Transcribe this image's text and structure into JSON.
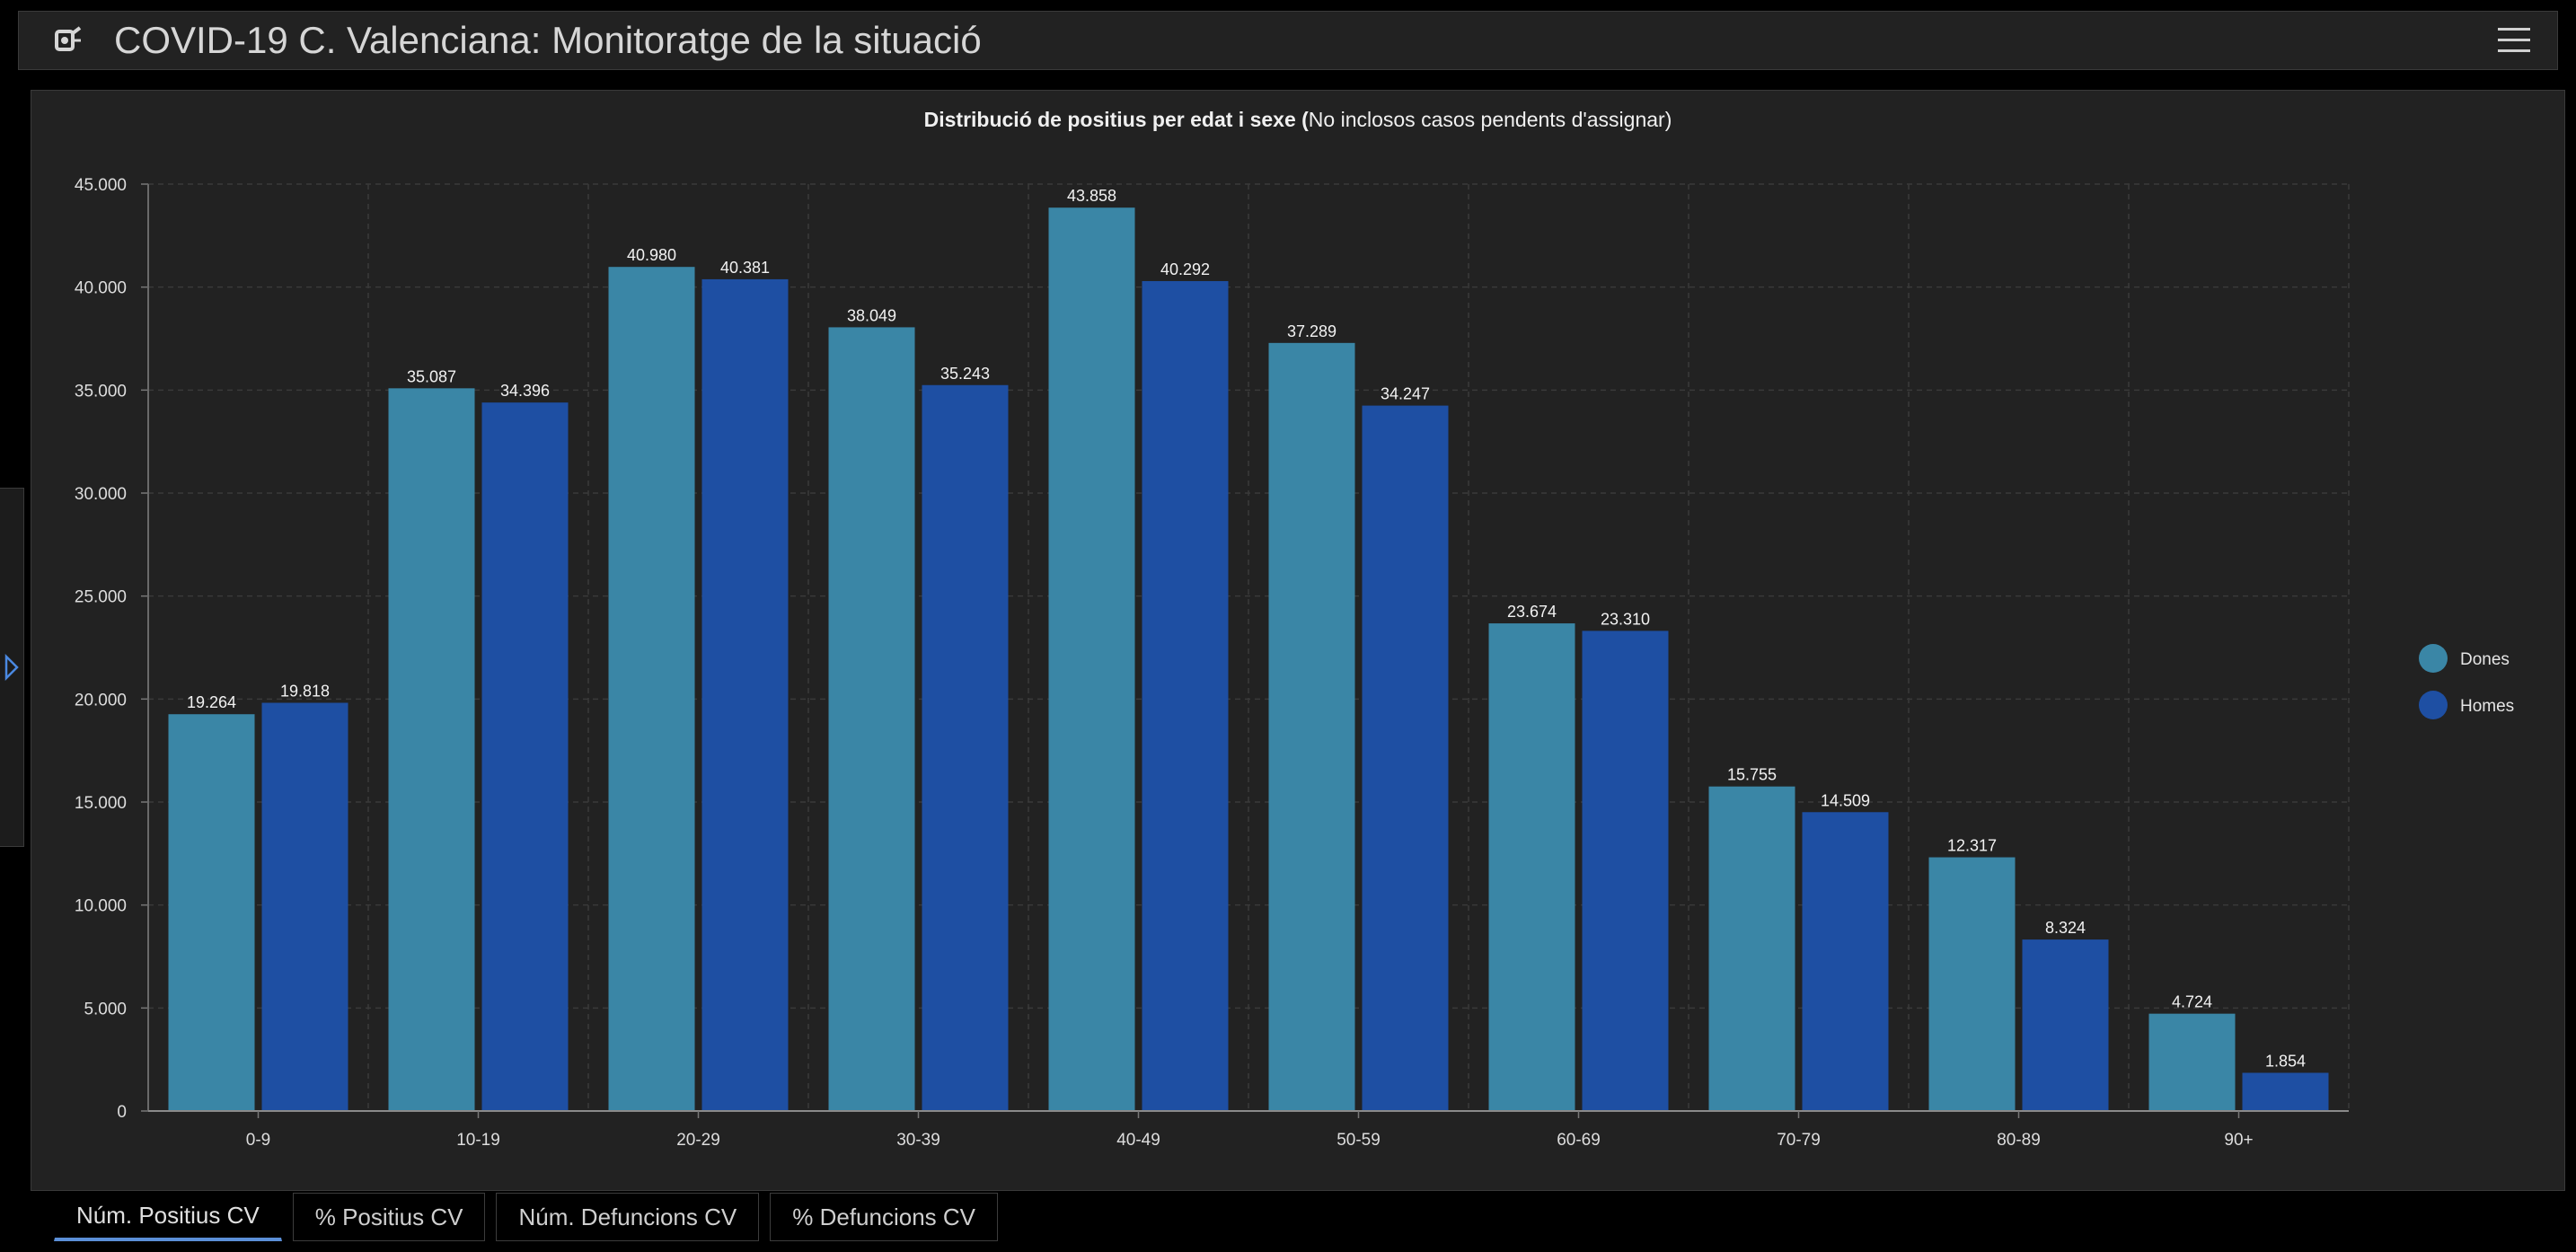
{
  "header": {
    "title": "COVID-19 C. Valenciana: Monitoratge de la situació",
    "logo_icon": "virus-logo-icon",
    "menu_icon": "hamburger-menu-icon"
  },
  "side_toggle": {
    "icon": "chevron-right-icon"
  },
  "tabs": [
    {
      "label": "Núm. Positius CV",
      "active": true
    },
    {
      "label": "% Positius CV",
      "active": false
    },
    {
      "label": "Núm. Defuncions CV",
      "active": false
    },
    {
      "label": "% Defuncions CV",
      "active": false
    }
  ],
  "colors": {
    "dones": "#3a86a6",
    "homes": "#1e4fa3",
    "background": "#222222",
    "text": "#e6e6e6",
    "grid": "#3a3a3a"
  },
  "chart_data": {
    "type": "bar",
    "title_bold": "Distribució de positius per edat i sexe (",
    "title_rest": "No inclosos casos pendents d'assignar)",
    "xlabel": "",
    "ylabel": "",
    "ylim": [
      0,
      45000
    ],
    "yticks": [
      0,
      5000,
      10000,
      15000,
      20000,
      25000,
      30000,
      35000,
      40000,
      45000
    ],
    "ytick_labels": [
      "0",
      "5.000",
      "10.000",
      "15.000",
      "20.000",
      "25.000",
      "30.000",
      "35.000",
      "40.000",
      "45.000"
    ],
    "grid": true,
    "legend_position": "right",
    "categories": [
      "0-9",
      "10-19",
      "20-29",
      "30-39",
      "40-49",
      "50-59",
      "60-69",
      "70-79",
      "80-89",
      "90+"
    ],
    "series": [
      {
        "name": "Dones",
        "color": "#3a86a6",
        "values": [
          19264,
          35087,
          40980,
          38049,
          43858,
          37289,
          23674,
          15755,
          12317,
          4724
        ],
        "labels": [
          "19.264",
          "35.087",
          "40.980",
          "38.049",
          "43.858",
          "37.289",
          "23.674",
          "15.755",
          "12.317",
          "4.724"
        ]
      },
      {
        "name": "Homes",
        "color": "#1e4fa3",
        "values": [
          19818,
          34396,
          40381,
          35243,
          40292,
          34247,
          23310,
          14509,
          8324,
          1854
        ],
        "labels": [
          "19.818",
          "34.396",
          "40.381",
          "35.243",
          "40.292",
          "34.247",
          "23.310",
          "14.509",
          "8.324",
          "1.854"
        ]
      }
    ]
  }
}
